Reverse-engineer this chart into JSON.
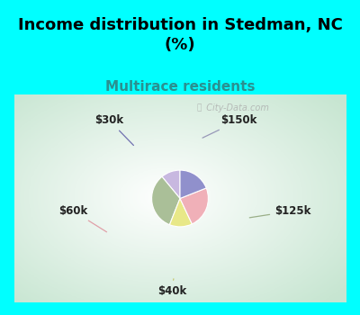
{
  "title": "Income distribution in Stedman, NC\n(%)",
  "subtitle": "Multirace residents",
  "title_fontsize": 13,
  "subtitle_fontsize": 11,
  "title_color": "#000000",
  "subtitle_color": "#2a9090",
  "background_cyan": "#00FFFF",
  "watermark": "City-Data.com",
  "slices": [
    {
      "label": "$150k",
      "value": 11,
      "color": "#c8b8e0"
    },
    {
      "label": "$125k",
      "value": 33,
      "color": "#aabf98"
    },
    {
      "label": "$40k",
      "value": 13,
      "color": "#e8e888"
    },
    {
      "label": "$60k",
      "value": 24,
      "color": "#f0b0b8"
    },
    {
      "label": "$30k",
      "value": 19,
      "color": "#9090cc"
    }
  ],
  "startangle": 90,
  "label_fontsize": 8.5
}
